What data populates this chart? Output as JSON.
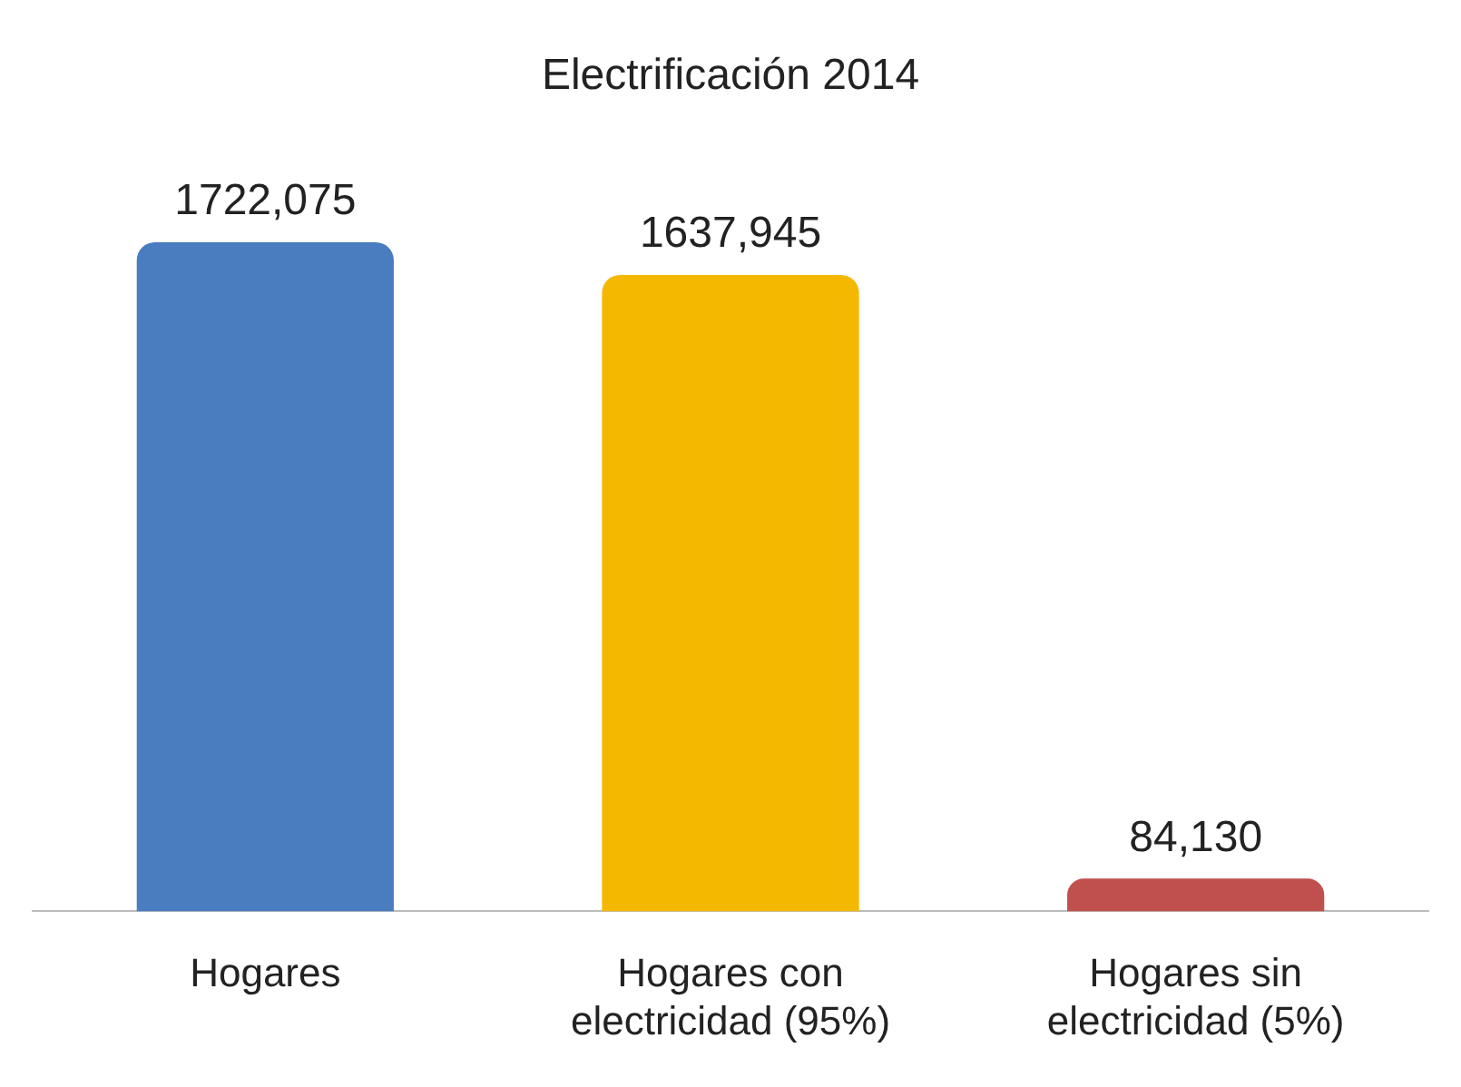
{
  "chart_data": {
    "type": "bar",
    "title": "Electrificación 2014",
    "categories": [
      "Hogares",
      "Hogares con electricidad (95%)",
      "Hogares sin electricidad (5%)"
    ],
    "values": [
      1722075,
      1637945,
      84130
    ],
    "value_labels": [
      "1722,075",
      "1637,945",
      "84,130"
    ],
    "colors": [
      "#4a7cc0",
      "#f5b800",
      "#c0504d"
    ],
    "grid": false,
    "legend": false
  }
}
